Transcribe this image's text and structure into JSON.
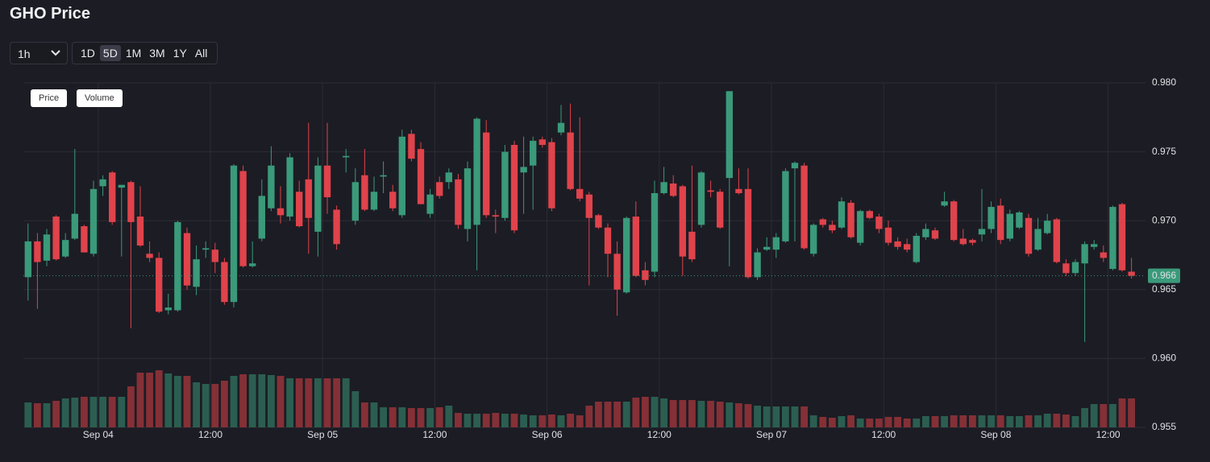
{
  "header": {
    "title": "GHO Price"
  },
  "controls": {
    "interval": "1h",
    "ranges": [
      "1D",
      "5D",
      "1M",
      "3M",
      "1Y",
      "All"
    ],
    "selected_range": "5D",
    "toggles": [
      "Price",
      "Volume"
    ]
  },
  "chart_data": {
    "type": "candlestick",
    "up_color": "#3a9a7a",
    "down_color": "#e0434b",
    "volume_up_color": "#2b5e50",
    "volume_down_color": "#843036",
    "grid": true,
    "xlim": [
      -0.5,
      119.5
    ],
    "xticks": [
      {
        "value": 7.5,
        "label": "Sep 04"
      },
      {
        "value": 19.5,
        "label": "12:00"
      },
      {
        "value": 31.5,
        "label": "Sep 05"
      },
      {
        "value": 43.5,
        "label": "12:00"
      },
      {
        "value": 55.5,
        "label": "Sep 06"
      },
      {
        "value": 67.5,
        "label": "12:00"
      },
      {
        "value": 79.5,
        "label": "Sep 07"
      },
      {
        "value": 91.5,
        "label": "12:00"
      },
      {
        "value": 103.5,
        "label": "Sep 08"
      },
      {
        "value": 115.5,
        "label": "12:00"
      }
    ],
    "ylim": [
      0.955,
      0.98
    ],
    "yticks": [
      {
        "value": 0.98,
        "label": "0.980"
      },
      0.975,
      {
        "value": 0.97,
        "label": "0.970"
      },
      0.965,
      {
        "value": 0.96,
        "label": "0.960"
      },
      0.955
    ],
    "last_price": 0.966,
    "open": [
      0.9659,
      0.9685,
      0.9671,
      0.9703,
      0.9674,
      0.9687,
      0.9696,
      0.9676,
      0.9725,
      0.9735,
      0.9724,
      0.9728,
      0.9703,
      0.9676,
      0.9673,
      0.9635,
      0.9635,
      0.9691,
      0.9652,
      0.9679,
      0.9679,
      0.967,
      0.9641,
      0.9736,
      0.9667,
      0.9687,
      0.9709,
      0.9709,
      0.9703,
      0.9721,
      0.973,
      0.9692,
      0.974,
      0.9708,
      0.9746,
      0.97,
      0.9733,
      0.9708,
      0.9732,
      0.9721,
      0.9704,
      0.9763,
      0.9752,
      0.9705,
      0.9728,
      0.9728,
      0.973,
      0.9694,
      0.9697,
      0.9764,
      0.9704,
      0.9702,
      0.9755,
      0.9735,
      0.974,
      0.9759,
      0.9757,
      0.9764,
      0.9764,
      0.9723,
      0.9719,
      0.9704,
      0.9695,
      0.9676,
      0.9648,
      0.9703,
      0.9664,
      0.9663,
      0.972,
      0.9727,
      0.9725,
      0.9692,
      0.9697,
      0.9722,
      0.9721,
      0.9731,
      0.9723,
      0.9723,
      0.9659,
      0.9679,
      0.9679,
      0.9685,
      0.9738,
      0.974,
      0.9676,
      0.9701,
      0.9697,
      0.9695,
      0.9713,
      0.9684,
      0.9707,
      0.9703,
      0.9695,
      0.9685,
      0.9683,
      0.967,
      0.9688,
      0.9693,
      0.9711,
      0.9714,
      0.9687,
      0.9686,
      0.969,
      0.9694,
      0.9711,
      0.9687,
      0.9695,
      0.9702,
      0.9679,
      0.9691,
      0.9701,
      0.9669,
      0.9662,
      0.9669,
      0.9681,
      0.9677,
      0.9665,
      0.9712,
      0.9663
    ],
    "high": [
      0.9698,
      0.9691,
      0.9694,
      0.9704,
      0.9691,
      0.9752,
      0.9697,
      0.9729,
      0.9733,
      0.9736,
      0.9726,
      0.9729,
      0.9725,
      0.9685,
      0.9677,
      0.9647,
      0.97,
      0.9695,
      0.9682,
      0.9685,
      0.9684,
      0.9673,
      0.9741,
      0.974,
      0.9685,
      0.973,
      0.9754,
      0.9725,
      0.9749,
      0.9729,
      0.9771,
      0.9746,
      0.9771,
      0.9711,
      0.9752,
      0.9738,
      0.9752,
      0.9732,
      0.9743,
      0.9726,
      0.9766,
      0.9766,
      0.9757,
      0.9723,
      0.9732,
      0.9738,
      0.9734,
      0.9743,
      0.9775,
      0.9773,
      0.9708,
      0.9755,
      0.9758,
      0.9761,
      0.9761,
      0.9761,
      0.976,
      0.9784,
      0.9785,
      0.9775,
      0.9721,
      0.9705,
      0.9698,
      0.9685,
      0.9703,
      0.9714,
      0.967,
      0.9729,
      0.9739,
      0.9733,
      0.9726,
      0.974,
      0.9736,
      0.9729,
      0.9723,
      0.9794,
      0.9738,
      0.9738,
      0.968,
      0.9688,
      0.9691,
      0.9738,
      0.9743,
      0.9742,
      0.9698,
      0.9702,
      0.97,
      0.9717,
      0.9715,
      0.9708,
      0.9708,
      0.9705,
      0.97,
      0.9688,
      0.9687,
      0.9691,
      0.9698,
      0.9695,
      0.9721,
      0.9715,
      0.9694,
      0.9687,
      0.9723,
      0.9714,
      0.9716,
      0.9708,
      0.9707,
      0.9705,
      0.9702,
      0.9705,
      0.9702,
      0.9672,
      0.9672,
      0.9685,
      0.9686,
      0.9682,
      0.9711,
      0.9713,
      0.9673
    ],
    "low": [
      0.9642,
      0.9636,
      0.9667,
      0.9671,
      0.9673,
      0.9686,
      0.9677,
      0.9674,
      0.9718,
      0.9697,
      0.9674,
      0.9622,
      0.9681,
      0.967,
      0.9633,
      0.9632,
      0.9634,
      0.965,
      0.9646,
      0.9673,
      0.9662,
      0.9639,
      0.9637,
      0.9666,
      0.9666,
      0.9685,
      0.9707,
      0.9698,
      0.97,
      0.9695,
      0.9676,
      0.9674,
      0.9705,
      0.9679,
      0.9735,
      0.9697,
      0.9707,
      0.9707,
      0.972,
      0.9707,
      0.9702,
      0.9743,
      0.9712,
      0.9702,
      0.9716,
      0.9723,
      0.9694,
      0.9685,
      0.9664,
      0.9702,
      0.9691,
      0.97,
      0.9691,
      0.9705,
      0.9708,
      0.9753,
      0.9707,
      0.9762,
      0.9722,
      0.9714,
      0.9653,
      0.9694,
      0.9659,
      0.9631,
      0.9647,
      0.9659,
      0.9653,
      0.9659,
      0.9719,
      0.9717,
      0.966,
      0.967,
      0.9695,
      0.9717,
      0.9694,
      0.9667,
      0.9719,
      0.9658,
      0.9657,
      0.9678,
      0.9673,
      0.9684,
      0.9685,
      0.9679,
      0.9674,
      0.9695,
      0.9691,
      0.9694,
      0.9687,
      0.9682,
      0.9701,
      0.9691,
      0.9682,
      0.9679,
      0.9677,
      0.9669,
      0.9686,
      0.9686,
      0.971,
      0.9685,
      0.9682,
      0.9682,
      0.9685,
      0.9691,
      0.9683,
      0.9685,
      0.9694,
      0.9674,
      0.9678,
      0.969,
      0.9669,
      0.966,
      0.966,
      0.9612,
      0.9679,
      0.967,
      0.9664,
      0.9663,
      0.9658
    ],
    "close": [
      0.9685,
      0.967,
      0.969,
      0.9672,
      0.9686,
      0.9705,
      0.9677,
      0.9723,
      0.973,
      0.9699,
      0.9726,
      0.9699,
      0.9682,
      0.9673,
      0.9634,
      0.9637,
      0.9699,
      0.9653,
      0.9672,
      0.968,
      0.967,
      0.9641,
      0.974,
      0.9667,
      0.9669,
      0.9718,
      0.974,
      0.9704,
      0.9746,
      0.9696,
      0.9702,
      0.974,
      0.9717,
      0.9683,
      0.9747,
      0.9728,
      0.9708,
      0.9721,
      0.9733,
      0.9709,
      0.9761,
      0.9745,
      0.9712,
      0.9719,
      0.9718,
      0.9735,
      0.9697,
      0.9738,
      0.9774,
      0.9704,
      0.9703,
      0.975,
      0.9693,
      0.9739,
      0.9758,
      0.9755,
      0.9709,
      0.9771,
      0.9723,
      0.9716,
      0.9702,
      0.9695,
      0.9676,
      0.965,
      0.9702,
      0.966,
      0.9657,
      0.972,
      0.9728,
      0.9718,
      0.9674,
      0.9672,
      0.9735,
      0.9721,
      0.9695,
      0.9794,
      0.972,
      0.9659,
      0.9677,
      0.9681,
      0.9688,
      0.9736,
      0.9742,
      0.968,
      0.9697,
      0.9697,
      0.9693,
      0.9714,
      0.9688,
      0.9707,
      0.9702,
      0.9694,
      0.9684,
      0.9681,
      0.9679,
      0.9689,
      0.9694,
      0.9687,
      0.9714,
      0.9686,
      0.9683,
      0.9684,
      0.9694,
      0.971,
      0.9686,
      0.9705,
      0.9706,
      0.9676,
      0.9694,
      0.97,
      0.967,
      0.9662,
      0.967,
      0.9683,
      0.9683,
      0.9673,
      0.971,
      0.9664,
      0.966
    ],
    "volume": [
      31,
      30,
      30,
      33,
      36,
      37,
      38,
      38,
      38,
      38,
      38,
      51,
      68,
      68,
      71,
      67,
      64,
      64,
      56,
      54,
      54,
      58,
      64,
      66,
      66,
      66,
      65,
      64,
      61,
      61,
      61,
      61,
      61,
      61,
      61,
      45,
      31,
      31,
      25,
      25,
      25,
      24,
      24,
      24,
      25,
      27,
      18,
      17,
      17,
      17,
      18,
      17,
      17,
      16,
      15,
      15,
      16,
      15,
      17,
      15,
      27,
      32,
      32,
      32,
      32,
      37,
      38,
      38,
      36,
      34,
      34,
      34,
      33,
      33,
      32,
      31,
      30,
      29,
      27,
      26,
      26,
      26,
      26,
      26,
      15,
      13,
      12,
      14,
      15,
      11,
      11,
      11,
      13,
      13,
      11,
      11,
      14,
      14,
      14,
      15,
      15,
      15,
      15,
      15,
      15,
      14,
      14,
      15,
      15,
      17,
      17,
      16,
      14,
      24,
      29,
      29,
      29,
      36,
      36
    ]
  }
}
